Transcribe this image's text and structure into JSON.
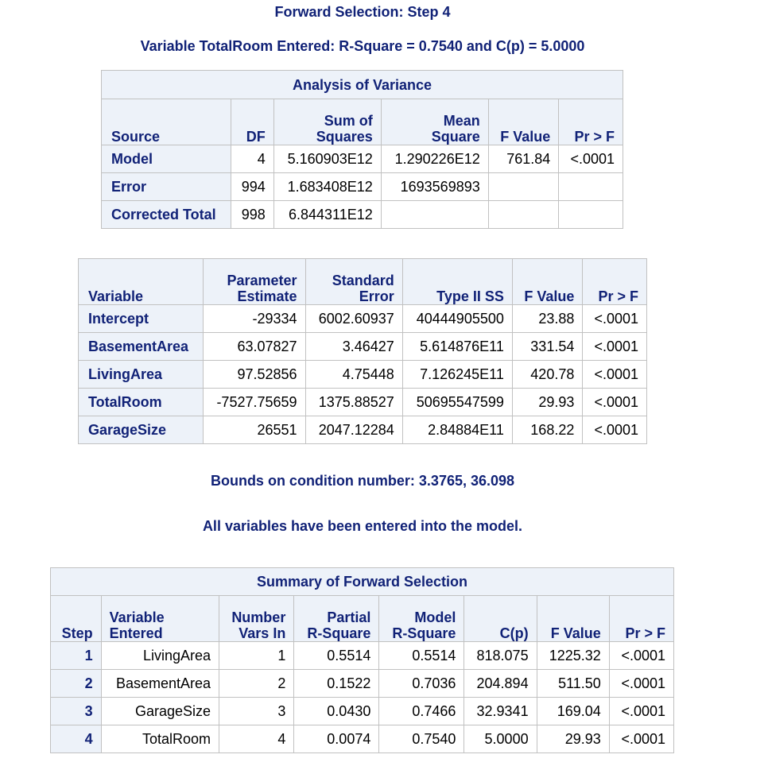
{
  "header": {
    "title": "Forward Selection: Step 4",
    "subtitle": "Variable TotalRoom Entered: R-Square = 0.7540 and C(p) = 5.0000"
  },
  "anova": {
    "caption": "Analysis of Variance",
    "columns": {
      "source": "Source",
      "df": "DF",
      "ss1": "Sum of",
      "ss2": "Squares",
      "ms1": "Mean",
      "ms2": "Square",
      "f": "F Value",
      "p": "Pr > F"
    },
    "rows": [
      {
        "source": "Model",
        "df": "4",
        "ss": "5.160903E12",
        "ms": "1.290226E12",
        "f": "761.84",
        "p": "<.0001"
      },
      {
        "source": "Error",
        "df": "994",
        "ss": "1.683408E12",
        "ms": "1693569893",
        "f": "",
        "p": ""
      },
      {
        "source": "Corrected Total",
        "df": "998",
        "ss": "6.844311E12",
        "ms": "",
        "f": "",
        "p": ""
      }
    ]
  },
  "parameters": {
    "columns": {
      "variable": "Variable",
      "est1": "Parameter",
      "est2": "Estimate",
      "se1": "Standard",
      "se2": "Error",
      "ss": "Type II SS",
      "f": "F Value",
      "p": "Pr > F"
    },
    "rows": [
      {
        "variable": "Intercept",
        "est": "-29334",
        "se": "6002.60937",
        "ss": "40444905500",
        "f": "23.88",
        "p": "<.0001"
      },
      {
        "variable": "BasementArea",
        "est": "63.07827",
        "se": "3.46427",
        "ss": "5.614876E11",
        "f": "331.54",
        "p": "<.0001"
      },
      {
        "variable": "LivingArea",
        "est": "97.52856",
        "se": "4.75448",
        "ss": "7.126245E11",
        "f": "420.78",
        "p": "<.0001"
      },
      {
        "variable": "TotalRoom",
        "est": "-7527.75659",
        "se": "1375.88527",
        "ss": "50695547599",
        "f": "29.93",
        "p": "<.0001"
      },
      {
        "variable": "GarageSize",
        "est": "26551",
        "se": "2047.12284",
        "ss": "2.84884E11",
        "f": "168.22",
        "p": "<.0001"
      }
    ]
  },
  "notes": {
    "bounds": "Bounds on condition number: 3.3765, 36.098",
    "all_entered": "All variables have been entered into the model."
  },
  "summary": {
    "caption": "Summary of Forward Selection",
    "columns": {
      "step": "Step",
      "var1": "Variable",
      "var2": "Entered",
      "num1": "Number",
      "num2": "Vars In",
      "prs1": "Partial",
      "prs2": "R-Square",
      "mrs1": "Model",
      "mrs2": "R-Square",
      "cp": "C(p)",
      "f": "F Value",
      "p": "Pr > F"
    },
    "rows": [
      {
        "step": "1",
        "variable": "LivingArea",
        "num": "1",
        "partial": "0.5514",
        "model": "0.5514",
        "cp": "818.075",
        "f": "1225.32",
        "p": "<.0001"
      },
      {
        "step": "2",
        "variable": "BasementArea",
        "num": "2",
        "partial": "0.1522",
        "model": "0.7036",
        "cp": "204.894",
        "f": "511.50",
        "p": "<.0001"
      },
      {
        "step": "3",
        "variable": "GarageSize",
        "num": "3",
        "partial": "0.0430",
        "model": "0.7466",
        "cp": "32.9341",
        "f": "169.04",
        "p": "<.0001"
      },
      {
        "step": "4",
        "variable": "TotalRoom",
        "num": "4",
        "partial": "0.0074",
        "model": "0.7540",
        "cp": "5.0000",
        "f": "29.93",
        "p": "<.0001"
      }
    ]
  },
  "colors": {
    "header_bg": "#edf2f9",
    "header_text": "#112277",
    "border": "#c1c1c1"
  }
}
